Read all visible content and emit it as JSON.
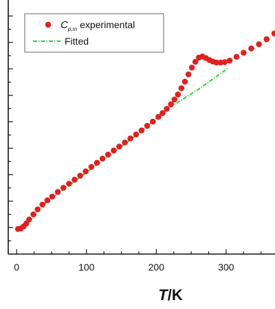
{
  "chart_data": {
    "type": "scatter",
    "xlabel": {
      "italic": "T",
      "rest": "/K"
    },
    "x_ticks": [
      0,
      100,
      200,
      300
    ],
    "xlim": [
      -12,
      370
    ],
    "ylim": [
      0,
      10
    ],
    "y_tick_labels": "none",
    "legend": {
      "placement": "top-left",
      "entries": [
        {
          "symbol": "C",
          "subscript": "p,m",
          "text": " experimental"
        },
        {
          "text": "Fitted"
        }
      ]
    },
    "colors": {
      "experimental": "#dd2222",
      "fitted": "#33cc33",
      "axis": "#111111"
    },
    "series": [
      {
        "name": "Cp,m experimental",
        "marker": "circle",
        "points": [
          [
            2,
            1.0
          ],
          [
            6,
            1.02
          ],
          [
            10,
            1.1
          ],
          [
            14,
            1.22
          ],
          [
            18,
            1.38
          ],
          [
            24,
            1.58
          ],
          [
            30,
            1.78
          ],
          [
            37,
            1.97
          ],
          [
            44,
            2.14
          ],
          [
            51,
            2.29
          ],
          [
            59,
            2.47
          ],
          [
            67,
            2.64
          ],
          [
            75,
            2.8
          ],
          [
            83,
            2.96
          ],
          [
            91,
            3.12
          ],
          [
            99,
            3.29
          ],
          [
            107,
            3.47
          ],
          [
            115,
            3.63
          ],
          [
            123,
            3.8
          ],
          [
            131,
            3.96
          ],
          [
            139,
            4.12
          ],
          [
            147,
            4.28
          ],
          [
            155,
            4.44
          ],
          [
            163,
            4.6
          ],
          [
            171,
            4.76
          ],
          [
            179,
            4.92
          ],
          [
            187,
            5.1
          ],
          [
            195,
            5.27
          ],
          [
            203,
            5.46
          ],
          [
            209,
            5.61
          ],
          [
            215,
            5.78
          ],
          [
            221,
            5.96
          ],
          [
            226,
            6.15
          ],
          [
            231,
            6.35
          ],
          [
            236,
            6.6
          ],
          [
            241,
            6.86
          ],
          [
            246,
            7.15
          ],
          [
            251,
            7.42
          ],
          [
            256,
            7.65
          ],
          [
            261,
            7.82
          ],
          [
            266,
            7.86
          ],
          [
            271,
            7.8
          ],
          [
            276,
            7.72
          ],
          [
            281,
            7.66
          ],
          [
            286,
            7.62
          ],
          [
            292,
            7.62
          ],
          [
            298,
            7.64
          ],
          [
            305,
            7.7
          ],
          [
            315,
            7.85
          ],
          [
            325,
            8.01
          ],
          [
            336,
            8.18
          ],
          [
            347,
            8.35
          ],
          [
            358,
            8.55
          ],
          [
            369,
            8.78
          ]
        ]
      },
      {
        "name": "Fitted",
        "line": "dash-dot",
        "points": [
          [
            40,
            2.0
          ],
          [
            100,
            3.25
          ],
          [
            160,
            4.48
          ],
          [
            220,
            5.85
          ],
          [
            260,
            6.55
          ],
          [
            302,
            7.38
          ]
        ]
      }
    ]
  }
}
